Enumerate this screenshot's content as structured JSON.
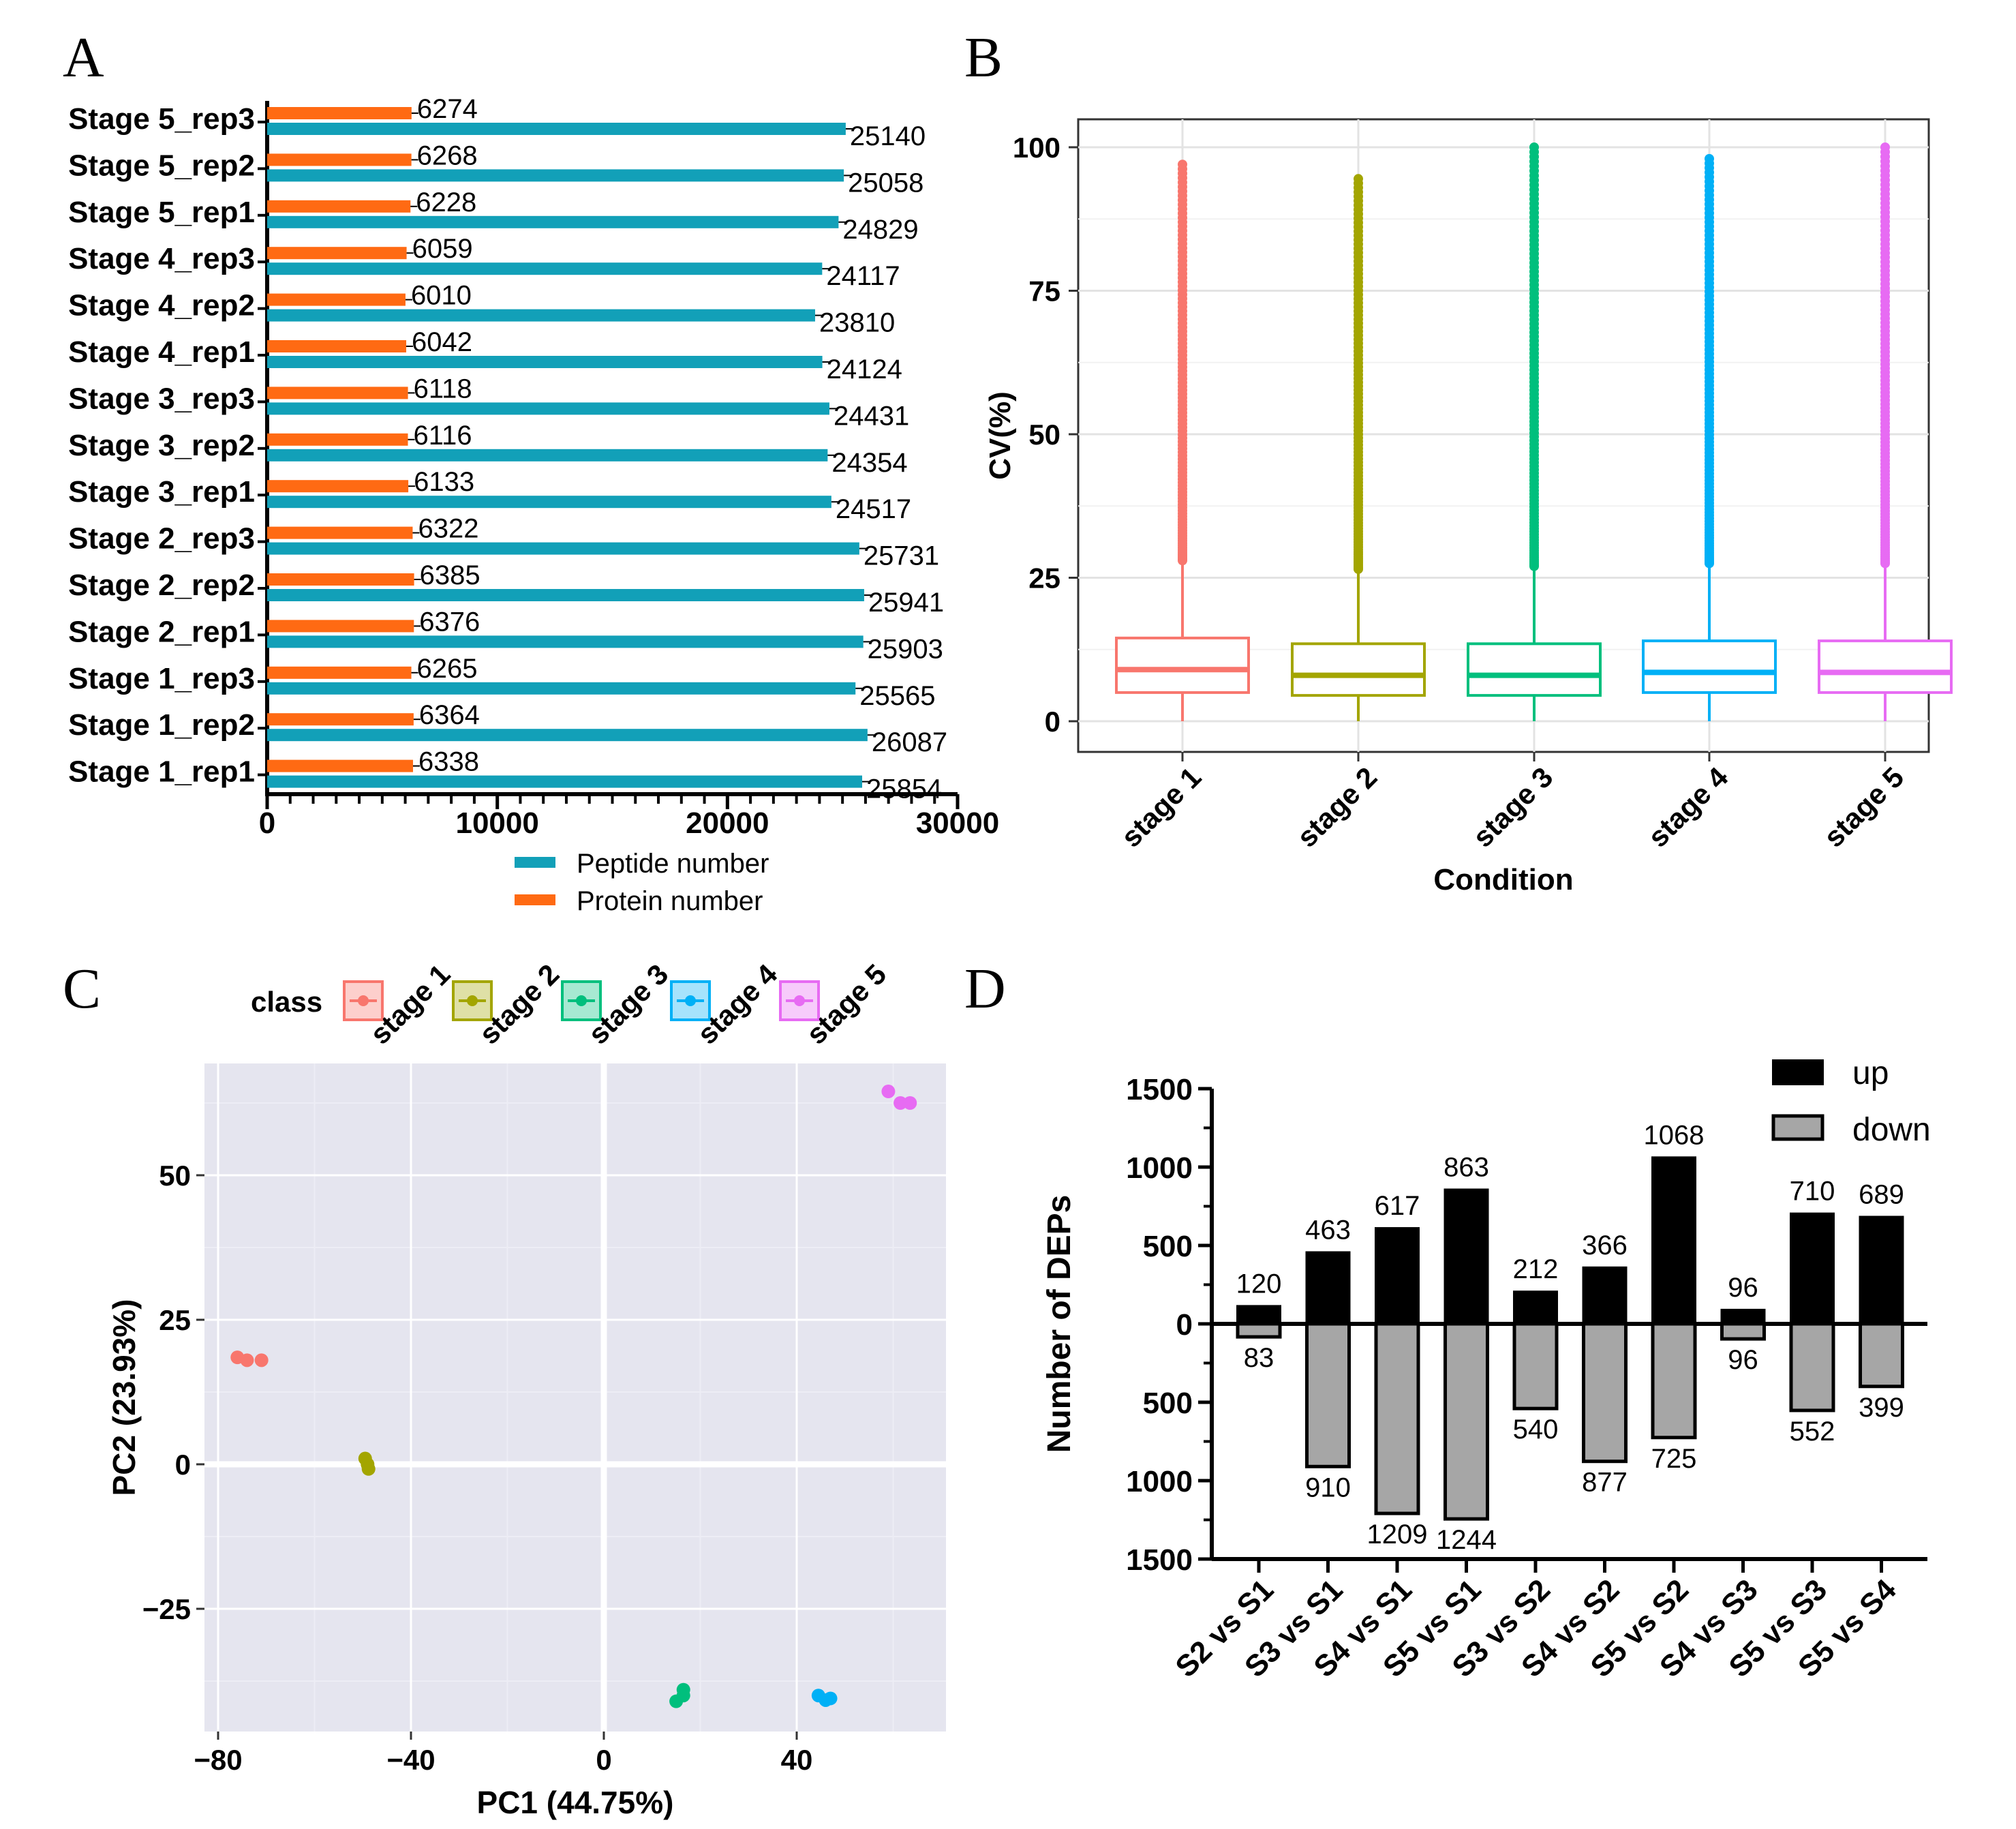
{
  "panels": {
    "A": "A",
    "B": "B",
    "C": "C",
    "D": "D"
  },
  "chart_data": [
    {
      "panel": "A",
      "type": "bar",
      "orientation": "horizontal",
      "categories": [
        "Stage 5_rep3",
        "Stage 5_rep2",
        "Stage 5_rep1",
        "Stage 4_rep3",
        "Stage 4_rep2",
        "Stage 4_rep1",
        "Stage 3_rep3",
        "Stage 3_rep2",
        "Stage 3_rep1",
        "Stage 2_rep3",
        "Stage 2_rep2",
        "Stage 2_rep1",
        "Stage 1_rep3",
        "Stage 1_rep2",
        "Stage 1_rep1"
      ],
      "series": [
        {
          "name": "Protein number",
          "color": "#ff6a13",
          "values": [
            6274,
            6268,
            6228,
            6059,
            6010,
            6042,
            6118,
            6116,
            6133,
            6322,
            6385,
            6376,
            6265,
            6364,
            6338
          ]
        },
        {
          "name": "Peptide number",
          "color": "#12a0b8",
          "values": [
            25140,
            25058,
            24829,
            24117,
            23810,
            24124,
            24431,
            24354,
            24517,
            25731,
            25941,
            25903,
            25565,
            26087,
            25854
          ]
        }
      ],
      "xlim": [
        0,
        30000
      ],
      "xticks": [
        "0",
        "10000",
        "20000",
        "30000"
      ],
      "legend": [
        "Peptide number",
        "Protein number"
      ]
    },
    {
      "panel": "B",
      "type": "box",
      "categories": [
        "stage 1",
        "stage 2",
        "stage 3",
        "stage 4",
        "stage 5"
      ],
      "colors": [
        "#f8766d",
        "#a3a500",
        "#00bf7d",
        "#00b0f6",
        "#e76bf3"
      ],
      "boxes": [
        {
          "q1": 5,
          "median": 9,
          "q3": 14.5,
          "min": 0,
          "whisker_high": 28,
          "outliers_max": 97
        },
        {
          "q1": 4.5,
          "median": 8,
          "q3": 13.5,
          "min": 0,
          "whisker_high": 26.5,
          "outliers_max": 94.5
        },
        {
          "q1": 4.5,
          "median": 8,
          "q3": 13.5,
          "min": 0,
          "whisker_high": 27,
          "outliers_max": 100
        },
        {
          "q1": 5,
          "median": 8.5,
          "q3": 14,
          "min": 0,
          "whisker_high": 27.5,
          "outliers_max": 98
        },
        {
          "q1": 5,
          "median": 8.5,
          "q3": 14,
          "min": 0,
          "whisker_high": 27.5,
          "outliers_max": 100
        }
      ],
      "ylim": [
        0,
        100
      ],
      "yticks": [
        "0",
        "25",
        "50",
        "75",
        "100"
      ],
      "ylabel": "CV(%)",
      "xlabel": "Condition"
    },
    {
      "panel": "C",
      "type": "scatter",
      "legend_title": "class",
      "groups": [
        {
          "name": "stage 1",
          "color": "#f8766d",
          "points": [
            [
              -76,
              18.5
            ],
            [
              -74,
              18
            ],
            [
              -71,
              18
            ]
          ]
        },
        {
          "name": "stage 2",
          "color": "#a3a500",
          "points": [
            [
              -49.5,
              1
            ],
            [
              -49,
              0
            ],
            [
              -48.8,
              -0.8
            ]
          ]
        },
        {
          "name": "stage 3",
          "color": "#00bf7d",
          "points": [
            [
              15,
              -41
            ],
            [
              16.5,
              -40
            ],
            [
              16.5,
              -39
            ]
          ]
        },
        {
          "name": "stage 4",
          "color": "#00b0f6",
          "points": [
            [
              44.5,
              -40
            ],
            [
              46,
              -40.8
            ],
            [
              47,
              -40.5
            ]
          ]
        },
        {
          "name": "stage 5",
          "color": "#e76bf3",
          "points": [
            [
              59,
              64.5
            ],
            [
              61.5,
              62.5
            ],
            [
              63.5,
              62.5
            ]
          ]
        }
      ],
      "xlim": [
        -83,
        70
      ],
      "ylim": [
        -46,
        70
      ],
      "xticks": [
        "−80",
        "−40",
        "0",
        "40"
      ],
      "yticks": [
        "−25",
        "0",
        "25",
        "50"
      ],
      "xlabel": "PC1 (44.75%)",
      "ylabel": "PC2 (23.93%)"
    },
    {
      "panel": "D",
      "type": "bar",
      "categories": [
        "S2 vs S1",
        "S3 vs S1",
        "S4 vs S1",
        "S5 vs S1",
        "S3 vs S2",
        "S4 vs S2",
        "S5 vs S2",
        "S4 vs S3",
        "S5 vs S3",
        "S5 vs S4"
      ],
      "series": [
        {
          "name": "up",
          "color": "#000000",
          "values": [
            120,
            463,
            617,
            863,
            212,
            366,
            1068,
            96,
            710,
            689
          ]
        },
        {
          "name": "down",
          "color": "#a6a6a6",
          "values": [
            83,
            910,
            1209,
            1244,
            540,
            877,
            725,
            96,
            552,
            399
          ]
        }
      ],
      "ylim": [
        -1500,
        1500
      ],
      "yticks": [
        "1500",
        "1000",
        "500",
        "0",
        "500",
        "1000",
        "1500"
      ],
      "ylabel": "Number  of DEPs"
    }
  ]
}
